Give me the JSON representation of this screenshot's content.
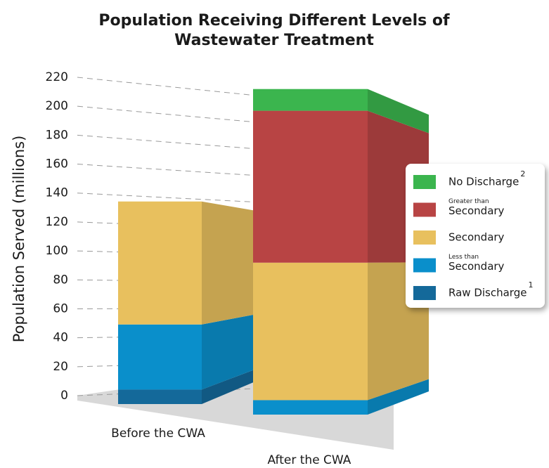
{
  "chart_data": {
    "type": "stacked-bar-3d",
    "title": [
      "Population Receiving Different Levels of",
      "Wastewater Treatment"
    ],
    "y_label": "Population Served (millions)",
    "categories": [
      "Before the CWA",
      "After the CWA"
    ],
    "series": [
      {
        "name": "Raw Discharge",
        "footnote": "1",
        "color": "#14699a",
        "values": [
          10,
          0
        ]
      },
      {
        "name_small": "Less than",
        "name": "Secondary",
        "color": "#0a8fcb",
        "values": [
          45,
          10
        ]
      },
      {
        "name": "Secondary",
        "color": "#e8c05e",
        "values": [
          85,
          95
        ]
      },
      {
        "name_small": "Greater than",
        "name": "Secondary",
        "color": "#b84444",
        "values": [
          0,
          105
        ]
      },
      {
        "name": "No Discharge",
        "footnote": "2",
        "color": "#3bb54e",
        "values": [
          0,
          15
        ]
      }
    ],
    "ylim": [
      0,
      230
    ],
    "yticks": [
      0,
      20,
      40,
      60,
      80,
      100,
      120,
      140,
      160,
      180,
      200,
      220
    ],
    "grid": true
  }
}
